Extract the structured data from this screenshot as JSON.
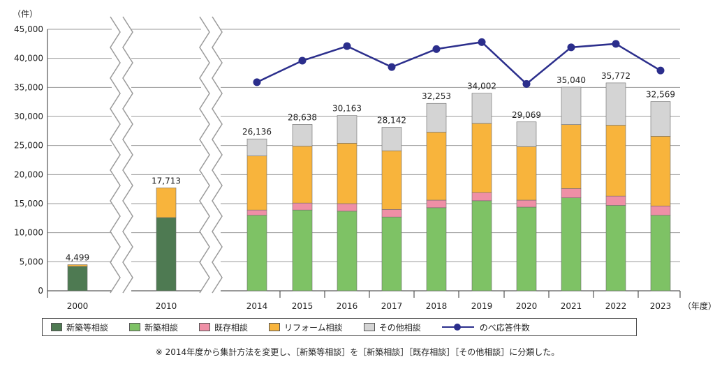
{
  "chart_data": {
    "type": "bar",
    "stacked": true,
    "unit_label": "（件）",
    "x_suffix": "（年度）",
    "categories": [
      "2000",
      "2010",
      "2014",
      "2015",
      "2016",
      "2017",
      "2018",
      "2019",
      "2020",
      "2021",
      "2022",
      "2023"
    ],
    "axis_break_after": [
      "2000",
      "2010"
    ],
    "ylim": [
      0,
      45000
    ],
    "yticks": [
      0,
      5000,
      10000,
      15000,
      20000,
      25000,
      30000,
      35000,
      40000,
      45000
    ],
    "ytick_labels": [
      "0",
      "5,000",
      "10,000",
      "15,000",
      "20,000",
      "25,000",
      "30,000",
      "35,000",
      "40,000",
      "45,000"
    ],
    "series": [
      {
        "name": "新築等相談",
        "color": "#4e7a52",
        "values": [
          4200,
          12600,
          null,
          null,
          null,
          null,
          null,
          null,
          null,
          null,
          null,
          null
        ]
      },
      {
        "name": "新築相談",
        "color": "#7ec265",
        "values": [
          null,
          null,
          13000,
          13900,
          13700,
          12700,
          14300,
          15500,
          14400,
          16000,
          14700,
          13000
        ]
      },
      {
        "name": "既存相談",
        "color": "#ef8fa6",
        "values": [
          null,
          null,
          900,
          1200,
          1300,
          1300,
          1300,
          1400,
          1200,
          1600,
          1600,
          1600
        ]
      },
      {
        "name": "リフォーム相談",
        "color": "#f8b43c",
        "values": [
          299,
          5113,
          9300,
          9800,
          10400,
          10100,
          11700,
          11900,
          9200,
          11000,
          12200,
          12000
        ]
      },
      {
        "name": "その他相談",
        "color": "#d4d4d4",
        "values": [
          null,
          null,
          2936,
          3738,
          4763,
          4042,
          4953,
          5202,
          4269,
          6440,
          7272,
          5969
        ]
      }
    ],
    "totals": [
      4499,
      17713,
      26136,
      28638,
      30163,
      28142,
      32253,
      34002,
      29069,
      35040,
      35772,
      32569
    ],
    "total_labels": [
      "4,499",
      "17,713",
      "26,136",
      "28,638",
      "30,163",
      "28,142",
      "32,253",
      "34,002",
      "29,069",
      "35,040",
      "35,772",
      "32,569"
    ],
    "line_series": {
      "name": "のべ応答件数",
      "color": "#2b2e8c",
      "values": [
        null,
        null,
        35900,
        39600,
        42100,
        38500,
        41600,
        42800,
        35600,
        41900,
        42500,
        37900
      ]
    }
  },
  "legend": {
    "items": [
      {
        "label": "新築等相談",
        "color": "#4e7a52"
      },
      {
        "label": "新築相談",
        "color": "#7ec265"
      },
      {
        "label": "既存相談",
        "color": "#ef8fa6"
      },
      {
        "label": "リフォーム相談",
        "color": "#f8b43c"
      },
      {
        "label": "その他相談",
        "color": "#d4d4d4"
      }
    ],
    "line_label": "のべ応答件数"
  },
  "note": "※ 2014年度から集計方法を変更し、［新築等相談］を［新築相談］［既存相談］［その他相談］に分類した。"
}
